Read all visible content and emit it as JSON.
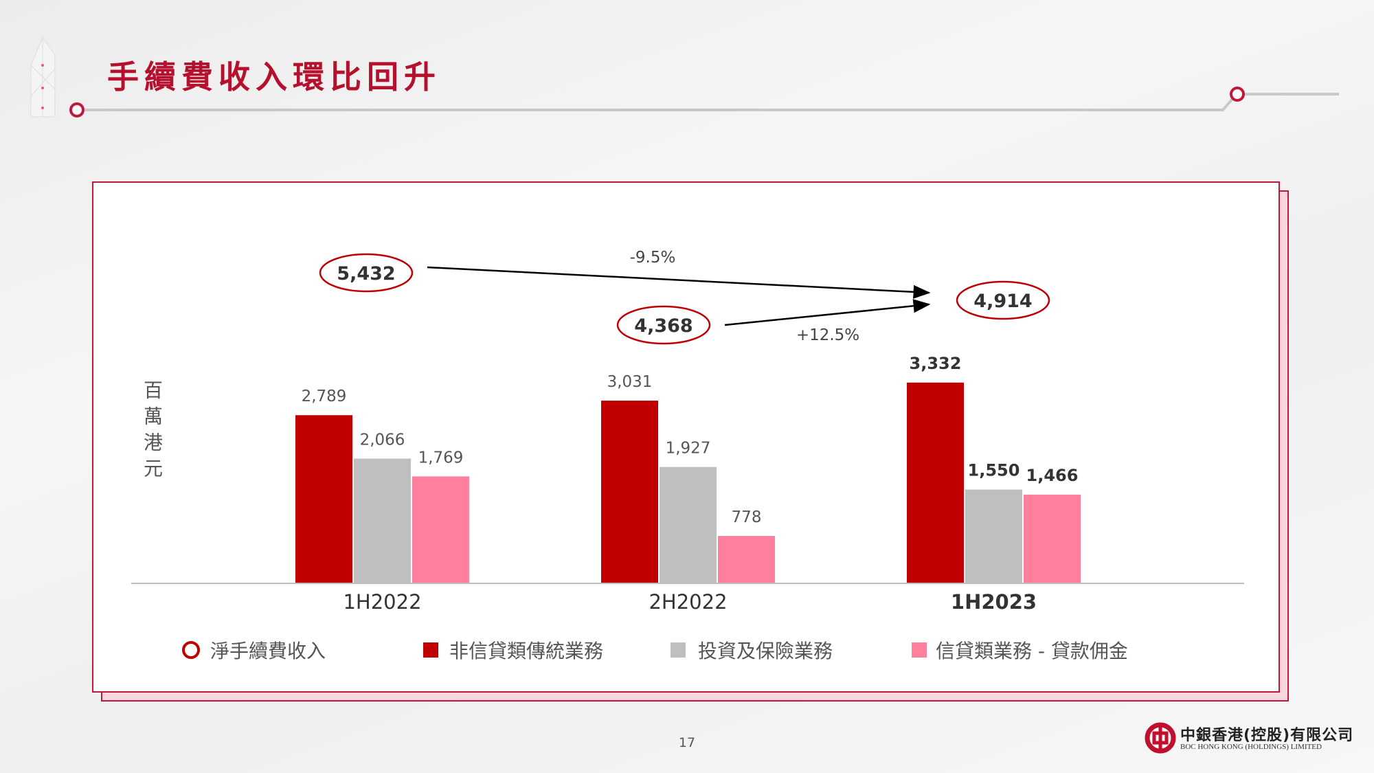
{
  "title": "手續費收入環比回升",
  "page_number": "17",
  "logo": {
    "cn": "中銀香港(控股)有限公司",
    "en": "BOC HONG KONG (HOLDINGS) LIMITED"
  },
  "colors": {
    "brand": "#b5102e",
    "series1": "#c00000",
    "series2": "#bfbfbf",
    "series3": "#ff7f9c"
  },
  "chart_data": {
    "type": "bar",
    "ylabel": "百萬港元",
    "categories": [
      "1H2022",
      "2H2022",
      "1H2023"
    ],
    "series": [
      {
        "name": "非信貸類傳統業務",
        "values": [
          2789,
          3031,
          3332
        ],
        "labels": [
          "2,789",
          "3,031",
          "3,332"
        ]
      },
      {
        "name": "投資及保險業務",
        "values": [
          2066,
          1927,
          1550
        ],
        "labels": [
          "2,066",
          "1,927",
          "1,550"
        ]
      },
      {
        "name": "信貸類業務 - 貸款佣金",
        "values": [
          1769,
          778,
          1466
        ],
        "labels": [
          "1,769",
          "778",
          "1,466"
        ]
      }
    ],
    "totals": {
      "name": "淨手續費收入",
      "values": [
        5432,
        4368,
        4914
      ],
      "labels": [
        "5,432",
        "4,368",
        "4,914"
      ]
    },
    "annotations": [
      "-9.5%",
      "+12.5%"
    ],
    "legend_position": "bottom",
    "grid": false
  }
}
